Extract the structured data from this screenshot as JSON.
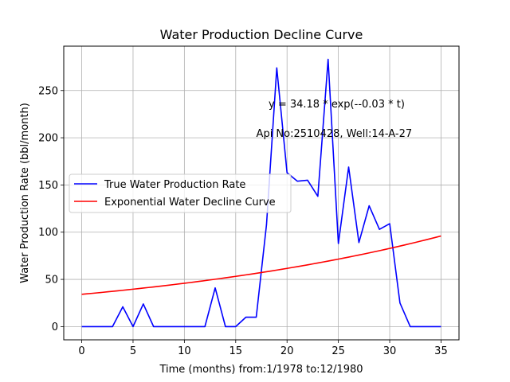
{
  "chart_data": {
    "type": "line",
    "title": "Water Production Decline Curve",
    "xlabel": "Time (months) from:1/1978 to:12/1980",
    "ylabel": "Water Production Rate (bbl/month)",
    "xlim": [
      -1.75,
      36.75
    ],
    "ylim": [
      -14,
      297
    ],
    "xticks": [
      0,
      5,
      10,
      15,
      20,
      25,
      30,
      35
    ],
    "yticks": [
      0,
      50,
      100,
      150,
      200,
      250
    ],
    "grid": true,
    "legend_position": "center-left",
    "x": [
      0,
      1,
      2,
      3,
      4,
      5,
      6,
      7,
      8,
      9,
      10,
      11,
      12,
      13,
      14,
      15,
      16,
      17,
      18,
      19,
      20,
      21,
      22,
      23,
      24,
      25,
      26,
      27,
      28,
      29,
      30,
      31,
      32,
      33,
      34,
      35
    ],
    "series": [
      {
        "name": "True Water Production Rate",
        "color": "#0000ff",
        "values": [
          0,
          0,
          0,
          0,
          21,
          0,
          24,
          0,
          0,
          0,
          0,
          0,
          0,
          41,
          0,
          0,
          10,
          10,
          108,
          274,
          163,
          154,
          155,
          138,
          283,
          88,
          169,
          89,
          128,
          103,
          109,
          25,
          0,
          0,
          0,
          0
        ]
      },
      {
        "name": "Exponential Water Decline Curve",
        "color": "#ff0000",
        "curve": {
          "a": 34.18,
          "b": 0.0295
        }
      }
    ],
    "annotations": [
      {
        "text": "y = 34.18 * exp(--0.03 * t)",
        "x": 18.2,
        "y": 232
      },
      {
        "text": "Api No:2510428, Well:14-A-27",
        "x": 17.0,
        "y": 201
      }
    ]
  }
}
